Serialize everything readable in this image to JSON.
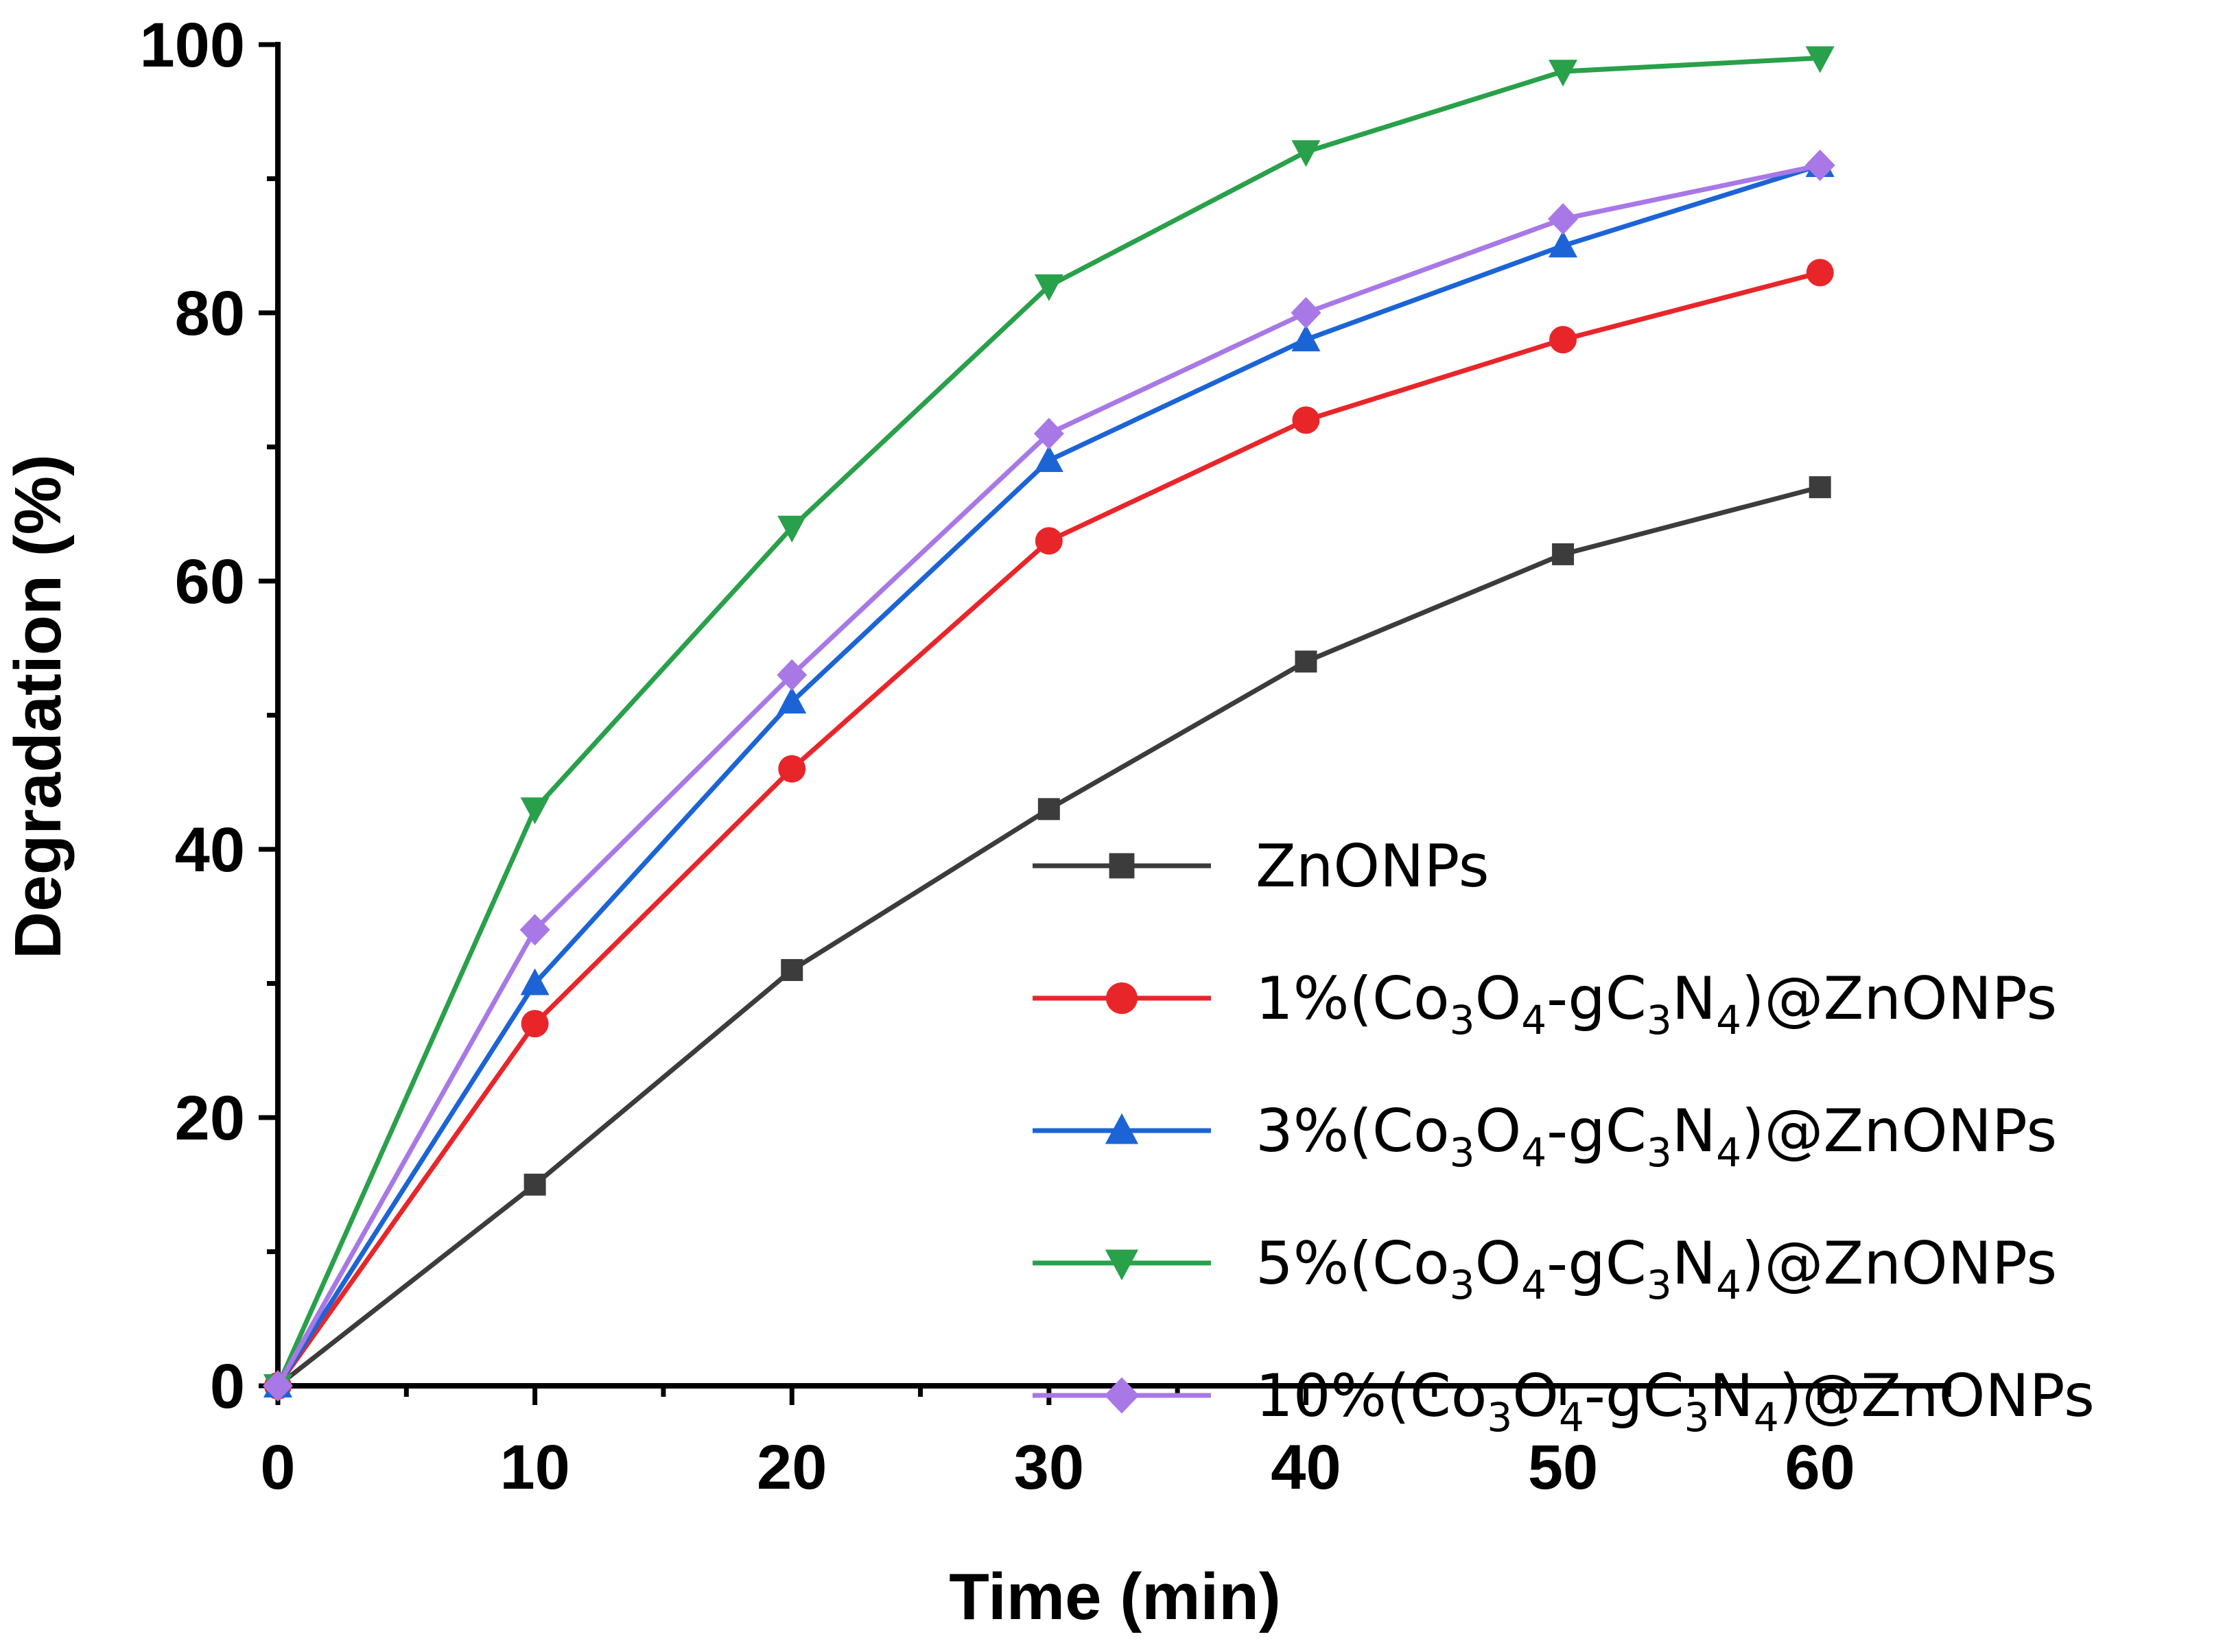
{
  "chart_data": {
    "type": "line",
    "title": "",
    "xlabel": "Time (min)",
    "ylabel": "Degradation (%)",
    "xlim": [
      0,
      65
    ],
    "ylim": [
      0,
      100
    ],
    "xticks": [
      0,
      10,
      20,
      30,
      40,
      50,
      60
    ],
    "yticks": [
      0,
      20,
      40,
      60,
      80,
      100
    ],
    "legend_position": "lower-right",
    "x": [
      0,
      10,
      20,
      30,
      40,
      50,
      60
    ],
    "series": [
      {
        "name": "ZnONPs",
        "label": {
          "pre": "ZnONPs"
        },
        "color": "#3c3c3c",
        "marker": "square",
        "values": [
          0,
          15,
          31,
          43,
          54,
          62,
          67
        ]
      },
      {
        "name": "1%(Co3O4-gC3N4)@ZnONPs",
        "label": {
          "pre": "1%(Co",
          "s1": "3",
          "m1": "O",
          "s2": "4",
          "m2": "-gC",
          "s3": "3",
          "m3": "N",
          "s4": "4",
          "post": ")@ZnONPs"
        },
        "color": "#e8262a",
        "marker": "circle",
        "values": [
          0,
          27,
          46,
          63,
          72,
          78,
          83
        ]
      },
      {
        "name": "3%(Co3O4-gC3N4)@ZnONPs",
        "label": {
          "pre": "3%(Co",
          "s1": "3",
          "m1": "O",
          "s2": "4",
          "m2": "-gC",
          "s3": "3",
          "m3": "N",
          "s4": "4",
          "post": ")@ZnONPs"
        },
        "color": "#1c64d6",
        "marker": "triangle-up",
        "values": [
          0,
          30,
          51,
          69,
          78,
          85,
          91
        ]
      },
      {
        "name": "5%(Co3O4-gC3N4)@ZnONPs",
        "label": {
          "pre": "5%(Co",
          "s1": "3",
          "m1": "O",
          "s2": "4",
          "m2": "-gC",
          "s3": "3",
          "m3": "N",
          "s4": "4",
          "post": ")@ZnONPs"
        },
        "color": "#29a04a",
        "marker": "triangle-down",
        "values": [
          0,
          43,
          64,
          82,
          92,
          98,
          99
        ]
      },
      {
        "name": "10%(Co3O4-gC3N4)@ZnONPs",
        "label": {
          "pre": "10%(Co",
          "s1": "3",
          "m1": "O",
          "s2": "4",
          "m2": "-gC",
          "s3": "3",
          "m3": "N",
          "s4": "4",
          "post": ")@ZnONPs"
        },
        "color": "#a878e6",
        "marker": "diamond",
        "values": [
          0,
          34,
          53,
          71,
          80,
          87,
          91
        ]
      }
    ]
  }
}
